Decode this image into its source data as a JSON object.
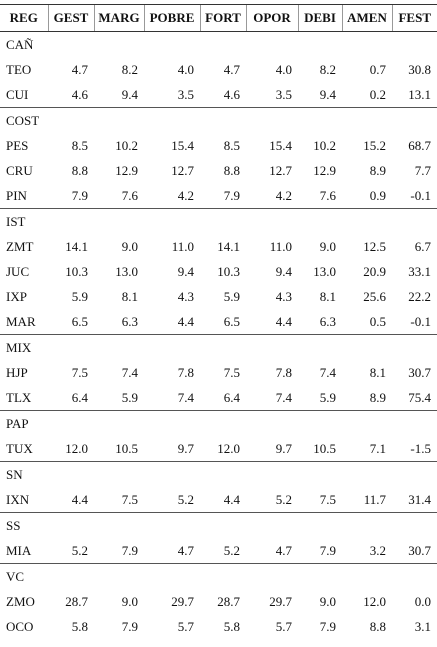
{
  "table": {
    "header": [
      "REG",
      "GEST",
      "MARG",
      "POBRE",
      "FORT",
      "OPOR",
      "DEBI",
      "AMEN",
      "FEST"
    ],
    "groups": [
      {
        "label": "CAÑ",
        "rows": [
          [
            "TEO",
            "4.7",
            "8.2",
            "4.0",
            "4.7",
            "4.0",
            "8.2",
            "0.7",
            "30.8"
          ],
          [
            "CUI",
            "4.6",
            "9.4",
            "3.5",
            "4.6",
            "3.5",
            "9.4",
            "0.2",
            "13.1"
          ]
        ]
      },
      {
        "label": "COST",
        "rows": [
          [
            "PES",
            "8.5",
            "10.2",
            "15.4",
            "8.5",
            "15.4",
            "10.2",
            "15.2",
            "68.7"
          ],
          [
            "CRU",
            "8.8",
            "12.9",
            "12.7",
            "8.8",
            "12.7",
            "12.9",
            "8.9",
            "7.7"
          ],
          [
            "PIN",
            "7.9",
            "7.6",
            "4.2",
            "7.9",
            "4.2",
            "7.6",
            "0.9",
            "-0.1"
          ]
        ]
      },
      {
        "label": "IST",
        "rows": [
          [
            "ZMT",
            "14.1",
            "9.0",
            "11.0",
            "14.1",
            "11.0",
            "9.0",
            "12.5",
            "6.7"
          ],
          [
            "JUC",
            "10.3",
            "13.0",
            "9.4",
            "10.3",
            "9.4",
            "13.0",
            "20.9",
            "33.1"
          ],
          [
            "IXP",
            "5.9",
            "8.1",
            "4.3",
            "5.9",
            "4.3",
            "8.1",
            "25.6",
            "22.2"
          ],
          [
            "MAR",
            "6.5",
            "6.3",
            "4.4",
            "6.5",
            "4.4",
            "6.3",
            "0.5",
            "-0.1"
          ]
        ]
      },
      {
        "label": "MIX",
        "rows": [
          [
            "HJP",
            "7.5",
            "7.4",
            "7.8",
            "7.5",
            "7.8",
            "7.4",
            "8.1",
            "30.7"
          ],
          [
            "TLX",
            "6.4",
            "5.9",
            "7.4",
            "6.4",
            "7.4",
            "5.9",
            "8.9",
            "75.4"
          ]
        ]
      },
      {
        "label": "PAP",
        "rows": [
          [
            "TUX",
            "12.0",
            "10.5",
            "9.7",
            "12.0",
            "9.7",
            "10.5",
            "7.1",
            "-1.5"
          ]
        ]
      },
      {
        "label": "SN",
        "rows": [
          [
            "IXN",
            "4.4",
            "7.5",
            "5.2",
            "4.4",
            "5.2",
            "7.5",
            "11.7",
            "31.4"
          ]
        ]
      },
      {
        "label": "SS",
        "rows": [
          [
            "MIA",
            "5.2",
            "7.9",
            "4.7",
            "5.2",
            "4.7",
            "7.9",
            "3.2",
            "30.7"
          ]
        ]
      },
      {
        "label": "VC",
        "rows": [
          [
            "ZMO",
            "28.7",
            "9.0",
            "29.7",
            "28.7",
            "29.7",
            "9.0",
            "12.0",
            "0.0"
          ],
          [
            "OCO",
            "5.8",
            "7.9",
            "5.7",
            "5.8",
            "5.7",
            "7.9",
            "8.8",
            "3.1"
          ]
        ]
      }
    ]
  }
}
